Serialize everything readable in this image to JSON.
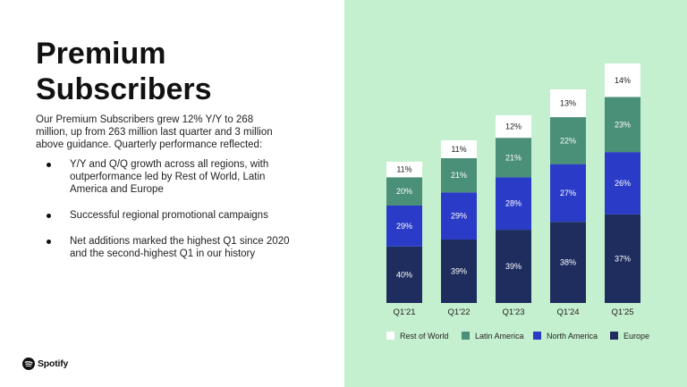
{
  "slide": {
    "title_line1": "Premium",
    "title_line2": "Subscribers",
    "intro": "Our Premium Subscribers grew 12% Y/Y to 268 million, up from 263 million last quarter and 3 million above guidance. Quarterly performance reflected:",
    "bullets": [
      "Y/Y and Q/Q growth across all regions, with outperformance led by Rest of World, Latin America and Europe",
      "Successful regional promotional campaigns",
      "Net additions marked the highest Q1 since 2020 and the second-highest Q1 in our history"
    ],
    "brand": "Spotify"
  },
  "colors": {
    "background_right": "#c5f0cf",
    "europe": "#1e2d5e",
    "north_america": "#2a3cc7",
    "latin_america": "#4a8f77",
    "rest_of_world": "#ffffff"
  },
  "chart_data": {
    "type": "bar",
    "stacked": true,
    "categories": [
      "Q1'21",
      "Q1'22",
      "Q1'23",
      "Q1'24",
      "Q1'25"
    ],
    "totals_millions": [
      158,
      182,
      210,
      239,
      268
    ],
    "series": [
      {
        "name": "Europe",
        "values": [
          40,
          39,
          39,
          38,
          37
        ],
        "labels": [
          "40%",
          "39%",
          "39%",
          "38%",
          "37%"
        ],
        "color": "#1e2d5e"
      },
      {
        "name": "North America",
        "values": [
          29,
          29,
          28,
          27,
          26
        ],
        "labels": [
          "29%",
          "29%",
          "28%",
          "27%",
          "26%"
        ],
        "color": "#2a3cc7"
      },
      {
        "name": "Latin America",
        "values": [
          20,
          21,
          21,
          22,
          23
        ],
        "labels": [
          "20%",
          "21%",
          "21%",
          "22%",
          "23%"
        ],
        "color": "#4a8f77"
      },
      {
        "name": "Rest of World",
        "values": [
          11,
          11,
          12,
          13,
          14
        ],
        "labels": [
          "11%",
          "11%",
          "12%",
          "13%",
          "14%"
        ],
        "color": "#ffffff"
      }
    ],
    "legend": {
      "placement": "bottom",
      "order": [
        "Rest of World",
        "Latin America",
        "North America",
        "Europe"
      ]
    },
    "grid": false
  }
}
